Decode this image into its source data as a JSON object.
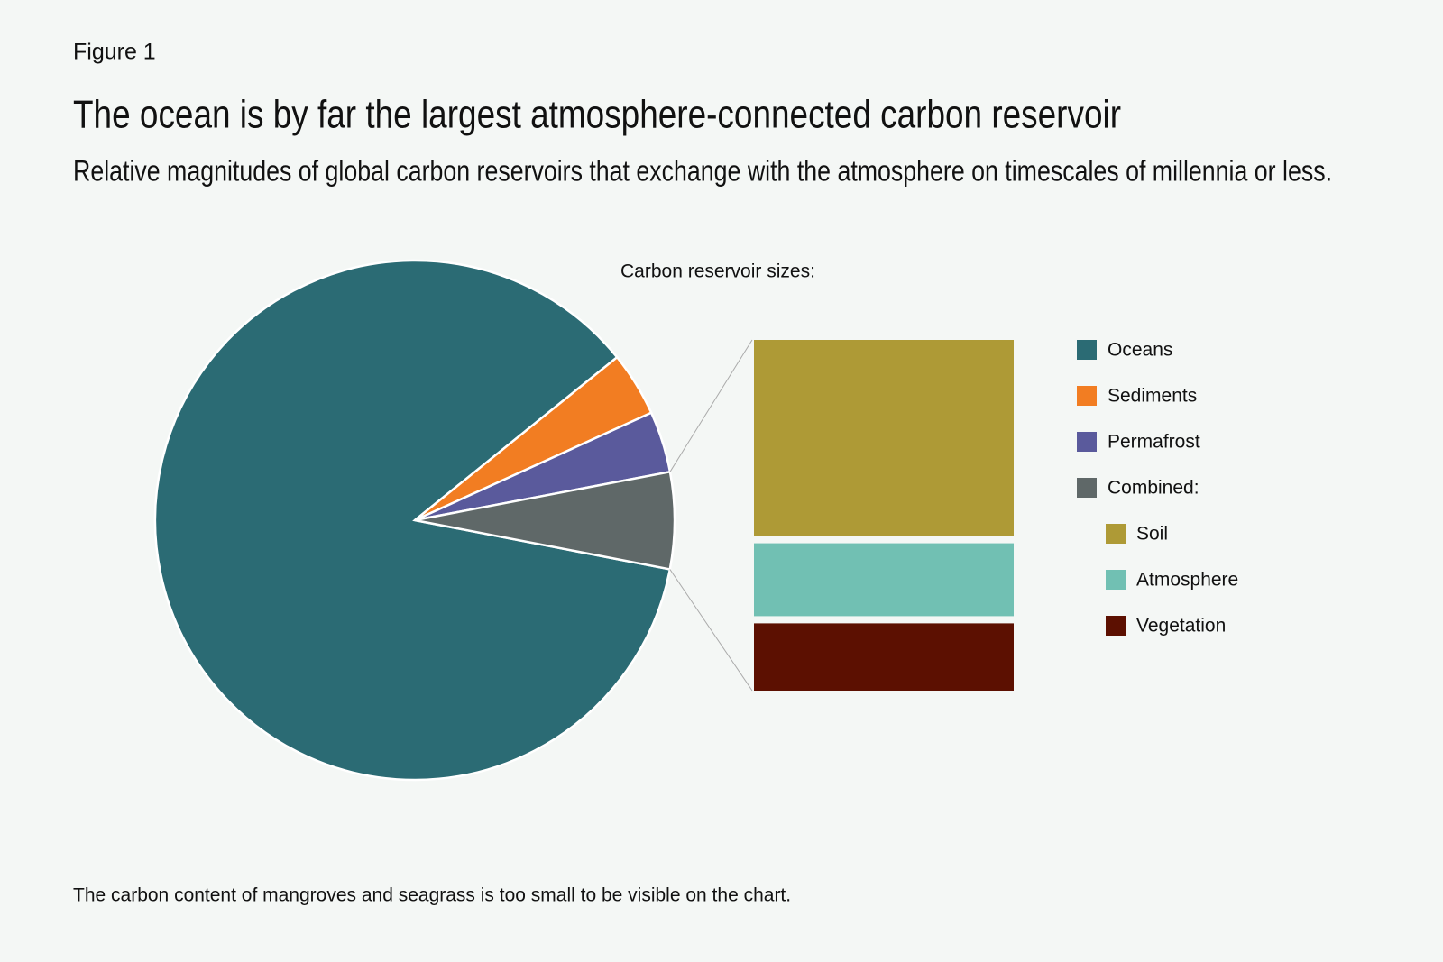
{
  "label": "Figure 1",
  "chart_data": {
    "type": "pie-of-bar",
    "title": "The ocean is by far the largest atmosphere-connected carbon reservoir",
    "subtitle": "Relative magnitudes of global carbon reservoirs that exchange with the atmosphere on timescales of millennia or less.",
    "legend_title": "Carbon reservoir sizes:",
    "slices": [
      {
        "name": "Oceans",
        "color": "#2b6b74",
        "value": 86
      },
      {
        "name": "Sediments",
        "color": "#f27d22",
        "value": 4
      },
      {
        "name": "Permafrost",
        "color": "#5a5a9c",
        "value": 3.8
      },
      {
        "name": "Combined:",
        "color": "#5f6868",
        "parts": [
          {
            "name": "Soil",
            "color": "#ae9a36",
            "value": 3.5
          },
          {
            "name": "Atmosphere",
            "color": "#71c0b3",
            "value": 1.3
          },
          {
            "name": "Vegetation",
            "color": "#5c1001",
            "value": 1.2
          }
        ]
      }
    ]
  },
  "note": "The carbon content of mangroves and seagrass is too small to be visible on the chart."
}
